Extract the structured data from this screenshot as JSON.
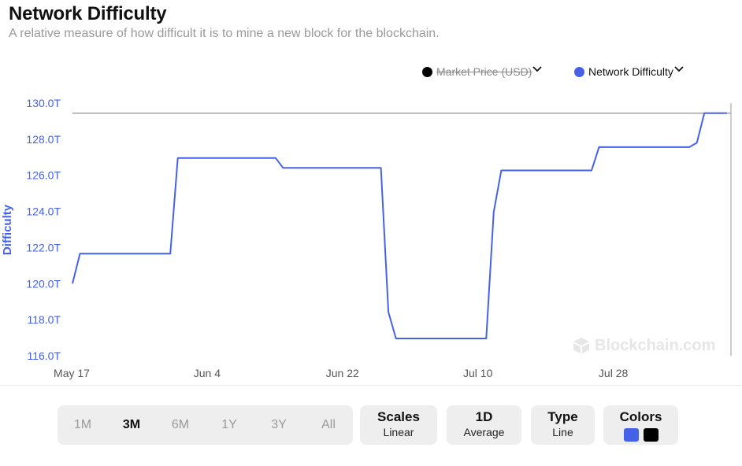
{
  "title": "Network Difficulty",
  "subtitle": "A relative measure of how difficult it is to mine a new block for the blockchain.",
  "legend": {
    "market_price": {
      "label": "Market Price (USD)",
      "color": "#000000",
      "hidden": true,
      "icon": "chevron-down-icon"
    },
    "network_difficulty": {
      "label": "Network Difficulty",
      "color": "#4562e6",
      "hidden": false,
      "icon": "chevron-down-icon"
    }
  },
  "watermark": "Blockchain.com",
  "chart_data": {
    "type": "line",
    "title": "Network Difficulty",
    "subtitle": "A relative measure of how difficult it is to mine a new block for the blockchain.",
    "ylabel": "Difficulty",
    "xlabel": "",
    "ylim": [
      116.0,
      130.0
    ],
    "y_unit": "T",
    "yticks": [
      "116.0T",
      "118.0T",
      "120.0T",
      "122.0T",
      "124.0T",
      "126.0T",
      "128.0T",
      "130.0T"
    ],
    "xticks": [
      "May 17",
      "Jun 4",
      "Jun 22",
      "Jul 10",
      "Jul 28"
    ],
    "grid": false,
    "legend_position": "top-right",
    "series": [
      {
        "name": "Network Difficulty",
        "color": "#4562e6",
        "points": [
          [
            "2024-05-17",
            120.0
          ],
          [
            "2024-05-18",
            121.66
          ],
          [
            "2024-05-30",
            121.66
          ],
          [
            "2024-05-31",
            126.96
          ],
          [
            "2024-06-13",
            126.96
          ],
          [
            "2024-06-14",
            126.41
          ],
          [
            "2024-06-27",
            126.41
          ],
          [
            "2024-06-28",
            118.42
          ],
          [
            "2024-06-29",
            116.96
          ],
          [
            "2024-07-11",
            116.96
          ],
          [
            "2024-07-12",
            123.97
          ],
          [
            "2024-07-13",
            126.27
          ],
          [
            "2024-07-25",
            126.27
          ],
          [
            "2024-07-26",
            127.56
          ],
          [
            "2024-08-07",
            127.56
          ],
          [
            "2024-08-08",
            127.8
          ],
          [
            "2024-08-09",
            129.44
          ],
          [
            "2024-08-12",
            129.44
          ]
        ]
      }
    ],
    "reference_line": 129.44
  },
  "controls": {
    "ranges": [
      "1M",
      "3M",
      "6M",
      "1Y",
      "3Y",
      "All"
    ],
    "active_range": "3M",
    "scales": {
      "title": "Scales",
      "value": "Linear"
    },
    "average": {
      "title": "1D",
      "value": "Average"
    },
    "type": {
      "title": "Type",
      "value": "Line"
    },
    "colors": {
      "title": "Colors",
      "swatch1": "#4562e6",
      "swatch2": "#000000"
    }
  }
}
